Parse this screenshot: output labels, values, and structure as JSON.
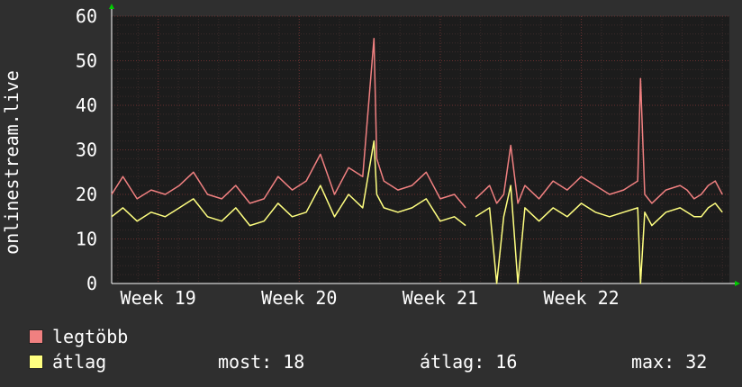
{
  "chart_data": {
    "type": "line",
    "ylabel": "onlinestream.live",
    "ylim": [
      0,
      60
    ],
    "yticks": [
      0,
      10,
      20,
      30,
      40,
      50,
      60
    ],
    "xticks": [
      "Week 19",
      "Week 20",
      "Week 21",
      "Week 22"
    ],
    "xtick_positions": [
      19,
      20,
      21,
      22
    ],
    "xlim": [
      18.67,
      23.05
    ],
    "grid": true,
    "legend_position": "bottom-left",
    "background": "#1c1c1c",
    "series": [
      {
        "name": "legtöbb",
        "color": "#f08080",
        "x": [
          18.67,
          18.75,
          18.85,
          18.95,
          19.05,
          19.15,
          19.25,
          19.35,
          19.45,
          19.55,
          19.65,
          19.75,
          19.85,
          19.95,
          20.05,
          20.15,
          20.25,
          20.35,
          20.45,
          20.53,
          20.55,
          20.6,
          20.7,
          20.8,
          20.9,
          21.0,
          21.1,
          21.18,
          21.2,
          21.25,
          21.35,
          21.4,
          21.45,
          21.5,
          21.55,
          21.6,
          21.7,
          21.8,
          21.9,
          22.0,
          22.1,
          22.2,
          22.3,
          22.4,
          22.42,
          22.45,
          22.5,
          22.6,
          22.7,
          22.75,
          22.8,
          22.85,
          22.9,
          22.95,
          23.0
        ],
        "y": [
          20,
          24,
          19,
          21,
          20,
          22,
          25,
          20,
          19,
          22,
          18,
          19,
          24,
          21,
          23,
          29,
          20,
          26,
          24,
          55,
          28,
          23,
          21,
          22,
          25,
          19,
          20,
          17,
          null,
          19,
          22,
          18,
          20,
          31,
          18,
          22,
          19,
          23,
          21,
          24,
          22,
          20,
          21,
          23,
          46,
          20,
          18,
          21,
          22,
          21,
          19,
          20,
          22,
          23,
          20
        ]
      },
      {
        "name": "átlag",
        "color": "#ffff80",
        "x": [
          18.67,
          18.75,
          18.85,
          18.95,
          19.05,
          19.15,
          19.25,
          19.35,
          19.45,
          19.55,
          19.65,
          19.75,
          19.85,
          19.95,
          20.05,
          20.15,
          20.25,
          20.35,
          20.45,
          20.53,
          20.55,
          20.6,
          20.7,
          20.8,
          20.9,
          21.0,
          21.1,
          21.18,
          21.2,
          21.25,
          21.35,
          21.4,
          21.45,
          21.5,
          21.55,
          21.6,
          21.7,
          21.8,
          21.9,
          22.0,
          22.1,
          22.2,
          22.3,
          22.4,
          22.42,
          22.45,
          22.5,
          22.6,
          22.7,
          22.75,
          22.8,
          22.85,
          22.9,
          22.95,
          23.0
        ],
        "y": [
          15,
          17,
          14,
          16,
          15,
          17,
          19,
          15,
          14,
          17,
          13,
          14,
          18,
          15,
          16,
          22,
          15,
          20,
          17,
          32,
          20,
          17,
          16,
          17,
          19,
          14,
          15,
          13,
          null,
          15,
          17,
          0,
          15,
          22,
          0,
          17,
          14,
          17,
          15,
          18,
          16,
          15,
          16,
          17,
          0,
          16,
          13,
          16,
          17,
          16,
          15,
          15,
          17,
          18,
          16
        ]
      }
    ],
    "legend": [
      {
        "label": "legtöbb",
        "color": "#f08080"
      },
      {
        "label": "átlag",
        "color": "#ffff80"
      }
    ],
    "stats": {
      "now_label": "most:",
      "now_value": "18",
      "avg_label": "átlag:",
      "avg_value": "16",
      "max_label": "max:",
      "max_value": "32"
    }
  }
}
